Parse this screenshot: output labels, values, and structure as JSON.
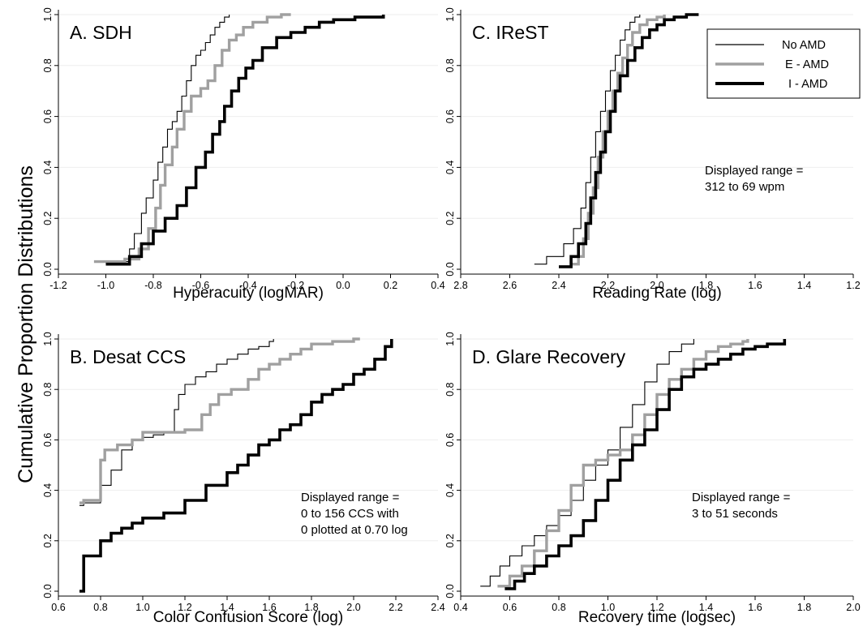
{
  "figure": {
    "ylabel": "Cumulative Proportion Distributions"
  },
  "legend": [
    {
      "name": "No AMD",
      "color": "#000000"
    },
    {
      "name": "E - AMD",
      "color": "#a0a0a0"
    },
    {
      "name": "I - AMD",
      "color": "#000000"
    }
  ],
  "chart_data": [
    {
      "type": "line",
      "title": "A. SDH",
      "xlabel": "Hyperacuity (logMAR)",
      "xlim": [
        -1.2,
        0.4
      ],
      "ylim": [
        0,
        1
      ],
      "xticks": [
        "-1.2",
        "-1.0",
        "-0.8",
        "-0.6",
        "-0.4",
        "-0.2",
        "0.0",
        "0.2",
        "0.4"
      ],
      "yticks": [
        "0.0",
        "0.2",
        "0.4",
        "0.6",
        "0.8",
        "1.0"
      ],
      "series": [
        {
          "name": "No AMD",
          "x": [
            -0.95,
            -0.9,
            -0.88,
            -0.85,
            -0.83,
            -0.8,
            -0.78,
            -0.76,
            -0.74,
            -0.72,
            -0.7,
            -0.68,
            -0.66,
            -0.64,
            -0.62,
            -0.6,
            -0.58,
            -0.56,
            -0.54,
            -0.52,
            -0.5,
            -0.48
          ],
          "y": [
            0.03,
            0.08,
            0.14,
            0.22,
            0.28,
            0.35,
            0.42,
            0.48,
            0.55,
            0.58,
            0.62,
            0.68,
            0.74,
            0.8,
            0.84,
            0.86,
            0.89,
            0.92,
            0.95,
            0.97,
            0.99,
            1.0
          ]
        },
        {
          "name": "E - AMD",
          "x": [
            -1.05,
            -0.92,
            -0.86,
            -0.82,
            -0.79,
            -0.77,
            -0.75,
            -0.72,
            -0.7,
            -0.67,
            -0.64,
            -0.6,
            -0.57,
            -0.54,
            -0.51,
            -0.48,
            -0.45,
            -0.42,
            -0.38,
            -0.32,
            -0.26,
            -0.22
          ],
          "y": [
            0.03,
            0.04,
            0.08,
            0.16,
            0.24,
            0.33,
            0.41,
            0.48,
            0.55,
            0.62,
            0.68,
            0.71,
            0.74,
            0.8,
            0.86,
            0.9,
            0.92,
            0.95,
            0.97,
            0.99,
            1.0,
            1.0
          ]
        },
        {
          "name": "I - AMD",
          "x": [
            -1.0,
            -0.9,
            -0.85,
            -0.8,
            -0.75,
            -0.7,
            -0.66,
            -0.62,
            -0.58,
            -0.55,
            -0.52,
            -0.5,
            -0.47,
            -0.44,
            -0.41,
            -0.38,
            -0.34,
            -0.28,
            -0.22,
            -0.16,
            -0.1,
            -0.04,
            0.05,
            0.17
          ],
          "y": [
            0.02,
            0.05,
            0.1,
            0.15,
            0.2,
            0.25,
            0.32,
            0.4,
            0.46,
            0.53,
            0.58,
            0.64,
            0.7,
            0.75,
            0.79,
            0.82,
            0.87,
            0.91,
            0.93,
            0.95,
            0.97,
            0.98,
            0.99,
            1.0
          ]
        }
      ]
    },
    {
      "type": "line",
      "title": "B. Desat CCS",
      "xlabel": "Color Confusion Score (log)",
      "xlim": [
        0.6,
        2.4
      ],
      "ylim": [
        0,
        1
      ],
      "xticks": [
        "0.6",
        "0.8",
        "1.0",
        "1.2",
        "1.4",
        "1.6",
        "1.8",
        "2.0",
        "2.2",
        "2.4"
      ],
      "yticks": [
        "0.0",
        "0.2",
        "0.4",
        "0.6",
        "0.8",
        "1.0"
      ],
      "annotation": [
        "Displayed range =",
        "0 to 156 CCS with",
        "0 plotted at 0.70 log"
      ],
      "series": [
        {
          "name": "No AMD",
          "x": [
            0.7,
            0.72,
            0.8,
            0.85,
            0.9,
            0.95,
            1.0,
            1.05,
            1.1,
            1.15,
            1.17,
            1.2,
            1.25,
            1.3,
            1.35,
            1.4,
            1.45,
            1.5,
            1.55,
            1.6,
            1.62
          ],
          "y": [
            0.34,
            0.35,
            0.42,
            0.48,
            0.56,
            0.6,
            0.61,
            0.62,
            0.63,
            0.72,
            0.78,
            0.82,
            0.85,
            0.87,
            0.9,
            0.92,
            0.94,
            0.96,
            0.97,
            0.99,
            1.0
          ]
        },
        {
          "name": "E - AMD",
          "x": [
            0.7,
            0.72,
            0.8,
            0.82,
            0.88,
            0.95,
            1.0,
            1.1,
            1.2,
            1.28,
            1.32,
            1.36,
            1.42,
            1.5,
            1.55,
            1.6,
            1.65,
            1.7,
            1.75,
            1.8,
            1.9,
            2.0,
            2.03
          ],
          "y": [
            0.35,
            0.36,
            0.52,
            0.56,
            0.58,
            0.6,
            0.63,
            0.63,
            0.64,
            0.7,
            0.74,
            0.78,
            0.8,
            0.84,
            0.88,
            0.9,
            0.92,
            0.94,
            0.96,
            0.98,
            0.99,
            1.0,
            1.0
          ]
        },
        {
          "name": "I - AMD",
          "x": [
            0.7,
            0.72,
            0.8,
            0.85,
            0.9,
            0.95,
            1.0,
            1.1,
            1.2,
            1.3,
            1.4,
            1.45,
            1.5,
            1.55,
            1.6,
            1.65,
            1.7,
            1.75,
            1.8,
            1.85,
            1.9,
            1.95,
            2.0,
            2.05,
            2.1,
            2.15,
            2.18
          ],
          "y": [
            0.0,
            0.14,
            0.2,
            0.23,
            0.25,
            0.27,
            0.29,
            0.31,
            0.36,
            0.42,
            0.47,
            0.5,
            0.54,
            0.58,
            0.6,
            0.64,
            0.66,
            0.7,
            0.75,
            0.78,
            0.8,
            0.82,
            0.86,
            0.88,
            0.92,
            0.97,
            1.0
          ]
        }
      ]
    },
    {
      "type": "line",
      "title": "C. IReST",
      "xlabel": "Reading Rate (log)",
      "xlim": [
        2.8,
        1.2
      ],
      "ylim": [
        0,
        1
      ],
      "xticks": [
        "2.8",
        "2.6",
        "2.4",
        "2.2",
        "2.0",
        "1.8",
        "1.6",
        "1.4",
        "1.2"
      ],
      "yticks": [
        "0.0",
        "0.2",
        "0.4",
        "0.6",
        "0.8",
        "1.0"
      ],
      "annotation": [
        "Displayed range =",
        "312 to 69 wpm"
      ],
      "series": [
        {
          "name": "No AMD",
          "x": [
            2.5,
            2.45,
            2.38,
            2.34,
            2.31,
            2.29,
            2.27,
            2.25,
            2.23,
            2.21,
            2.19,
            2.17,
            2.15,
            2.13,
            2.11,
            2.09,
            2.07
          ],
          "y": [
            0.02,
            0.05,
            0.1,
            0.16,
            0.24,
            0.34,
            0.44,
            0.54,
            0.62,
            0.7,
            0.78,
            0.84,
            0.9,
            0.94,
            0.97,
            0.99,
            1.0
          ]
        },
        {
          "name": "E - AMD",
          "x": [
            2.35,
            2.32,
            2.3,
            2.28,
            2.26,
            2.24,
            2.22,
            2.2,
            2.18,
            2.16,
            2.14,
            2.12,
            2.1,
            2.07,
            2.04,
            2.0,
            1.97
          ],
          "y": [
            0.02,
            0.05,
            0.12,
            0.22,
            0.32,
            0.44,
            0.54,
            0.62,
            0.7,
            0.77,
            0.83,
            0.88,
            0.93,
            0.96,
            0.98,
            0.99,
            1.0
          ]
        },
        {
          "name": "I - AMD",
          "x": [
            2.4,
            2.35,
            2.32,
            2.29,
            2.27,
            2.25,
            2.23,
            2.21,
            2.19,
            2.17,
            2.15,
            2.12,
            2.09,
            2.06,
            2.03,
            2.0,
            1.97,
            1.93,
            1.88,
            1.83
          ],
          "y": [
            0.01,
            0.05,
            0.1,
            0.18,
            0.28,
            0.38,
            0.46,
            0.54,
            0.62,
            0.7,
            0.76,
            0.82,
            0.87,
            0.91,
            0.94,
            0.96,
            0.98,
            0.99,
            1.0,
            1.0
          ]
        }
      ]
    },
    {
      "type": "line",
      "title": "D. Glare Recovery",
      "xlabel": "Recovery time (logsec)",
      "xlim": [
        0.4,
        2.0
      ],
      "ylim": [
        0,
        1
      ],
      "xticks": [
        "0.4",
        "0.6",
        "0.8",
        "1.0",
        "1.2",
        "1.4",
        "1.6",
        "1.8",
        "2.0"
      ],
      "yticks": [
        "0.0",
        "0.2",
        "0.4",
        "0.6",
        "0.8",
        "1.0"
      ],
      "annotation": [
        "Displayed range =",
        "3 to 51 seconds"
      ],
      "series": [
        {
          "name": "No AMD",
          "x": [
            0.48,
            0.52,
            0.56,
            0.6,
            0.65,
            0.7,
            0.75,
            0.8,
            0.85,
            0.9,
            0.95,
            1.0,
            1.05,
            1.1,
            1.15,
            1.2,
            1.25,
            1.3,
            1.35
          ],
          "y": [
            0.02,
            0.06,
            0.1,
            0.14,
            0.18,
            0.22,
            0.26,
            0.3,
            0.36,
            0.44,
            0.5,
            0.56,
            0.65,
            0.74,
            0.83,
            0.9,
            0.95,
            0.98,
            1.0
          ]
        },
        {
          "name": "E - AMD",
          "x": [
            0.55,
            0.6,
            0.65,
            0.7,
            0.75,
            0.8,
            0.85,
            0.9,
            0.95,
            1.0,
            1.05,
            1.1,
            1.15,
            1.2,
            1.25,
            1.3,
            1.35,
            1.4,
            1.45,
            1.5,
            1.55,
            1.57
          ],
          "y": [
            0.02,
            0.06,
            0.1,
            0.16,
            0.24,
            0.32,
            0.42,
            0.5,
            0.52,
            0.54,
            0.56,
            0.62,
            0.7,
            0.78,
            0.84,
            0.88,
            0.92,
            0.95,
            0.97,
            0.98,
            0.99,
            1.0
          ]
        },
        {
          "name": "I - AMD",
          "x": [
            0.58,
            0.62,
            0.66,
            0.7,
            0.75,
            0.8,
            0.85,
            0.9,
            0.95,
            1.0,
            1.05,
            1.1,
            1.15,
            1.2,
            1.25,
            1.3,
            1.35,
            1.4,
            1.45,
            1.5,
            1.55,
            1.6,
            1.65,
            1.72
          ],
          "y": [
            0.01,
            0.04,
            0.07,
            0.1,
            0.14,
            0.18,
            0.22,
            0.28,
            0.36,
            0.44,
            0.52,
            0.58,
            0.64,
            0.72,
            0.8,
            0.85,
            0.88,
            0.9,
            0.92,
            0.94,
            0.96,
            0.97,
            0.98,
            1.0
          ]
        }
      ]
    }
  ]
}
